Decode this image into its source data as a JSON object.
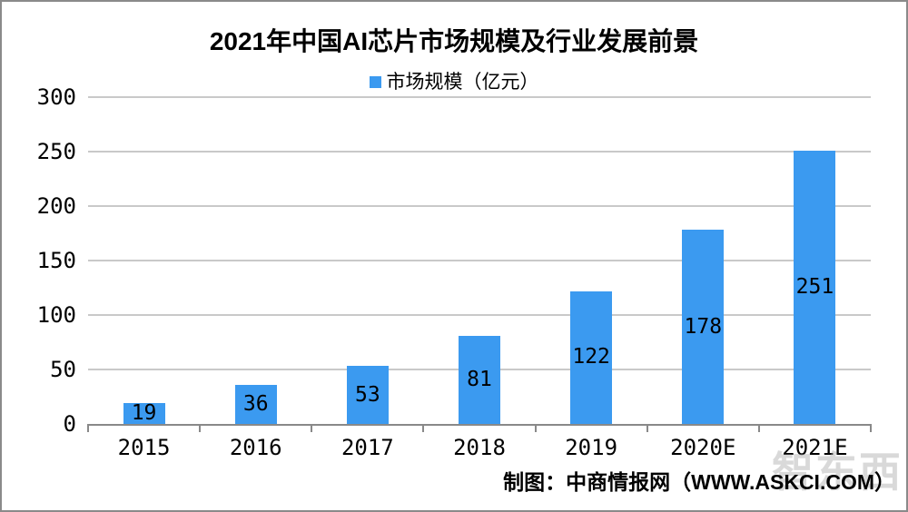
{
  "chart_data": {
    "type": "bar",
    "title": "2021年中国AI芯片市场规模及行业发展前景",
    "legend": {
      "label": "市场规模（亿元）",
      "position": "top"
    },
    "categories": [
      "2015",
      "2016",
      "2017",
      "2018",
      "2019",
      "2020E",
      "2021E"
    ],
    "values": [
      19,
      36,
      53,
      81,
      122,
      178,
      251
    ],
    "xlabel": "",
    "ylabel": "",
    "ylim": [
      0,
      300
    ],
    "yticks": [
      0,
      50,
      100,
      150,
      200,
      250,
      300
    ],
    "grid": true,
    "value_labels": "center-inside",
    "colors": {
      "bar": "#3B9AF0",
      "grid": "#c9c9c9",
      "axis": "#898989",
      "text": "#000000"
    }
  },
  "footer": {
    "credit": "制图：中商情报网（WWW.ASKCI.COM）"
  },
  "watermark": {
    "text": "智东西"
  }
}
